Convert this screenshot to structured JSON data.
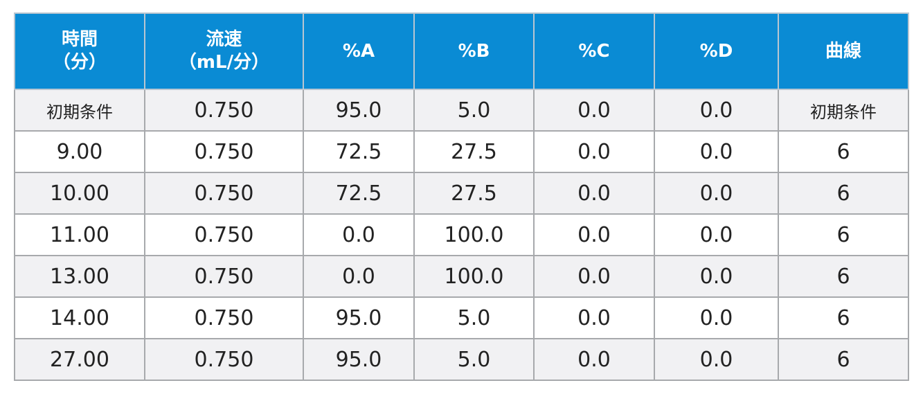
{
  "table": {
    "headers": [
      {
        "line1": "時間",
        "line2": "（分）"
      },
      {
        "line1": "流速",
        "line2": "（mL/分）"
      },
      {
        "line1": "%A",
        "line2": ""
      },
      {
        "line1": "%B",
        "line2": ""
      },
      {
        "line1": "%C",
        "line2": ""
      },
      {
        "line1": "%D",
        "line2": ""
      },
      {
        "line1": "曲線",
        "line2": ""
      }
    ],
    "rows": [
      [
        "初期条件",
        "0.750",
        "95.0",
        "5.0",
        "0.0",
        "0.0",
        "初期条件"
      ],
      [
        "9.00",
        "0.750",
        "72.5",
        "27.5",
        "0.0",
        "0.0",
        "6"
      ],
      [
        "10.00",
        "0.750",
        "72.5",
        "27.5",
        "0.0",
        "0.0",
        "6"
      ],
      [
        "11.00",
        "0.750",
        "0.0",
        "100.0",
        "0.0",
        "0.0",
        "6"
      ],
      [
        "13.00",
        "0.750",
        "0.0",
        "100.0",
        "0.0",
        "0.0",
        "6"
      ],
      [
        "14.00",
        "0.750",
        "95.0",
        "5.0",
        "0.0",
        "0.0",
        "6"
      ],
      [
        "27.00",
        "0.750",
        "95.0",
        "5.0",
        "0.0",
        "0.0",
        "6"
      ]
    ]
  },
  "colors": {
    "header_bg": "#0a8bd4",
    "header_text": "#ffffff",
    "border": "#a7a9ac",
    "row_alt_bg": "#f1f1f3"
  }
}
